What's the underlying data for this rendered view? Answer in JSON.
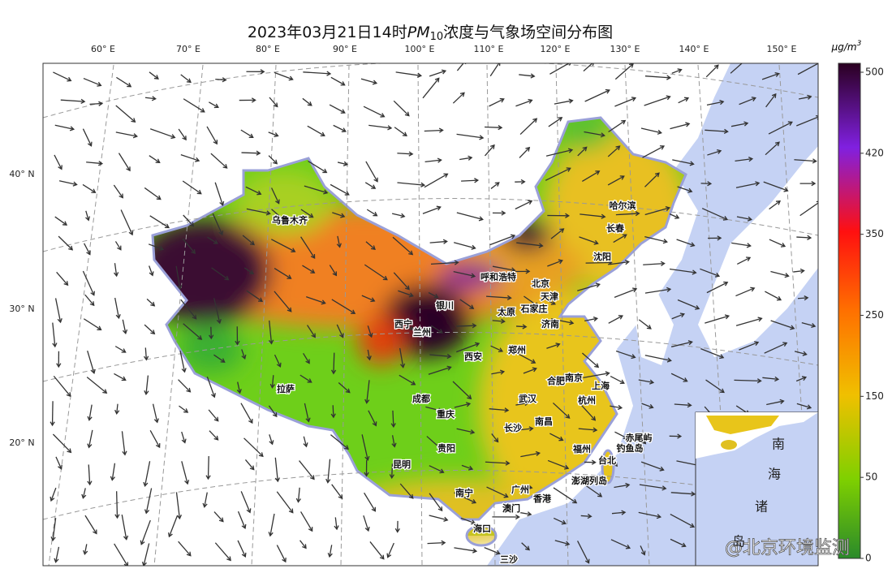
{
  "header": {
    "title_date": "2023年03月21日14时",
    "title_pollutant": "PM",
    "title_subscript": "10",
    "title_rest": "浓度与气象场空间分布图"
  },
  "longitude_labels": [
    "60° E",
    "70° E",
    "80° E",
    "90° E",
    "100° E",
    "110° E",
    "120° E",
    "130° E",
    "140° E",
    "150° E"
  ],
  "latitude_labels": [
    "40° N",
    "30° N",
    "20° N"
  ],
  "colorbar": {
    "unit": "μg/m",
    "unit_superscript": "3",
    "ticks": [
      500,
      420,
      350,
      250,
      150,
      50,
      0
    ]
  },
  "cities": [
    "乌鲁木齐",
    "哈尔滨",
    "长春",
    "沈阳",
    "呼和浩特",
    "北京",
    "天津",
    "银川",
    "石家庄",
    "太原",
    "西宁",
    "兰州",
    "济南",
    "郑州",
    "西安",
    "拉萨",
    "合肥",
    "南京",
    "上海",
    "成都",
    "武汉",
    "杭州",
    "重庆",
    "南昌",
    "长沙",
    "赤尾屿",
    "钓鱼岛",
    "贵阳",
    "福州",
    "台北",
    "昆明",
    "澎湖列岛",
    "广州",
    "南宁",
    "澳门",
    "香港",
    "海口",
    "三沙"
  ],
  "inset_labels": [
    "南",
    "海",
    "诸",
    "岛"
  ],
  "watermark": "@北京环境监测"
}
